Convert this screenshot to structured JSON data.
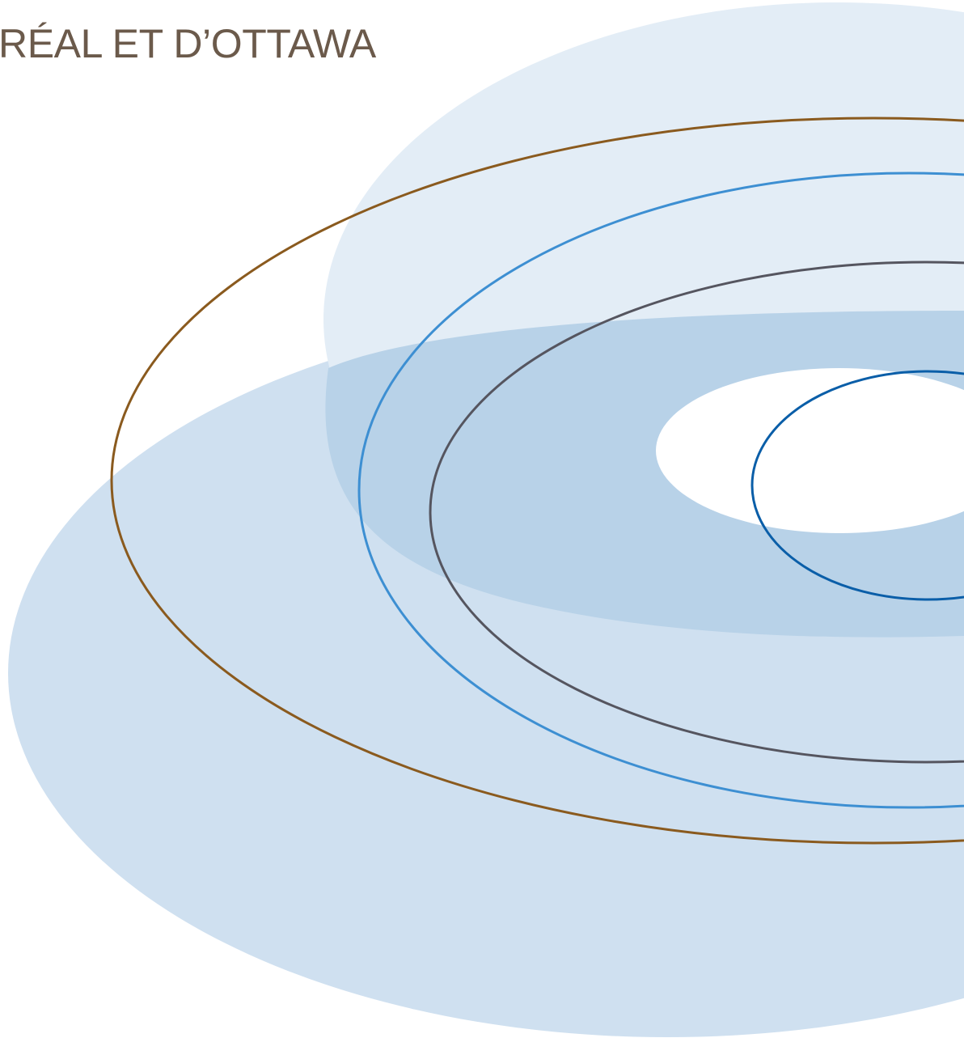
{
  "header": {
    "text": "RÉAL ET D’OTTAWA"
  },
  "colors": {
    "text": "#6b5a4b",
    "background": "#ffffff",
    "light_fill": "#cfe0f0",
    "pale_fill": "#e3edf6",
    "medium_fill": "#b8d2e8",
    "brown_line": "#8a5a1e",
    "blue_line": "#3d8fd2",
    "gray_line": "#55555f",
    "dark_blue_line": "#0a5ea8"
  }
}
